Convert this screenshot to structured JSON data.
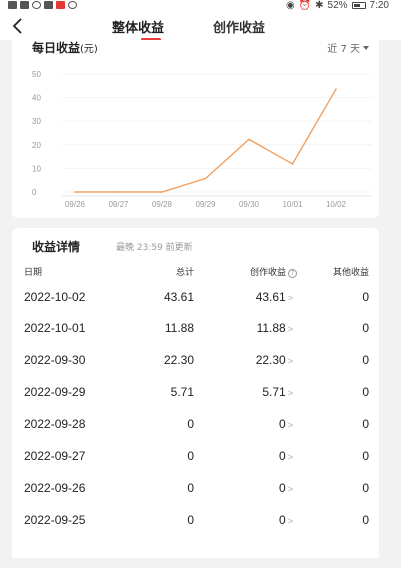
{
  "status": {
    "battery": "52%",
    "time": "7:20"
  },
  "header": {
    "tab_overall": "整体收益",
    "tab_creation": "创作收益"
  },
  "chart": {
    "title": "每日收益",
    "unit": "(元)",
    "range": "近 7 天"
  },
  "chart_data": {
    "type": "line",
    "categories": [
      "09/26",
      "09/27",
      "09/28",
      "09/29",
      "09/30",
      "10/01",
      "10/02"
    ],
    "values": [
      0,
      0,
      0,
      5.71,
      22.3,
      11.88,
      43.61
    ],
    "y_ticks": [
      "0",
      "10",
      "20",
      "30",
      "40",
      "50"
    ],
    "ylim": [
      0,
      50
    ],
    "grid": true,
    "line_color": "#f0a060"
  },
  "details": {
    "title": "收益详情",
    "updated": "最晚 23:59 前更新",
    "headers": {
      "date": "日期",
      "total": "总计",
      "creation": "创作收益",
      "other": "其他收益"
    },
    "rows": [
      {
        "date": "2022-10-02",
        "total": "43.61",
        "creation": "43.61",
        "other": "0"
      },
      {
        "date": "2022-10-01",
        "total": "11.88",
        "creation": "11.88",
        "other": "0"
      },
      {
        "date": "2022-09-30",
        "total": "22.30",
        "creation": "22.30",
        "other": "0"
      },
      {
        "date": "2022-09-29",
        "total": "5.71",
        "creation": "5.71",
        "other": "0"
      },
      {
        "date": "2022-09-28",
        "total": "0",
        "creation": "0",
        "other": "0"
      },
      {
        "date": "2022-09-27",
        "total": "0",
        "creation": "0",
        "other": "0"
      },
      {
        "date": "2022-09-26",
        "total": "0",
        "creation": "0",
        "other": "0"
      },
      {
        "date": "2022-09-25",
        "total": "0",
        "creation": "0",
        "other": "0"
      }
    ],
    "chevron": ">"
  },
  "colors": {
    "accent": "#ea3c3c",
    "line": "#f0a060"
  }
}
